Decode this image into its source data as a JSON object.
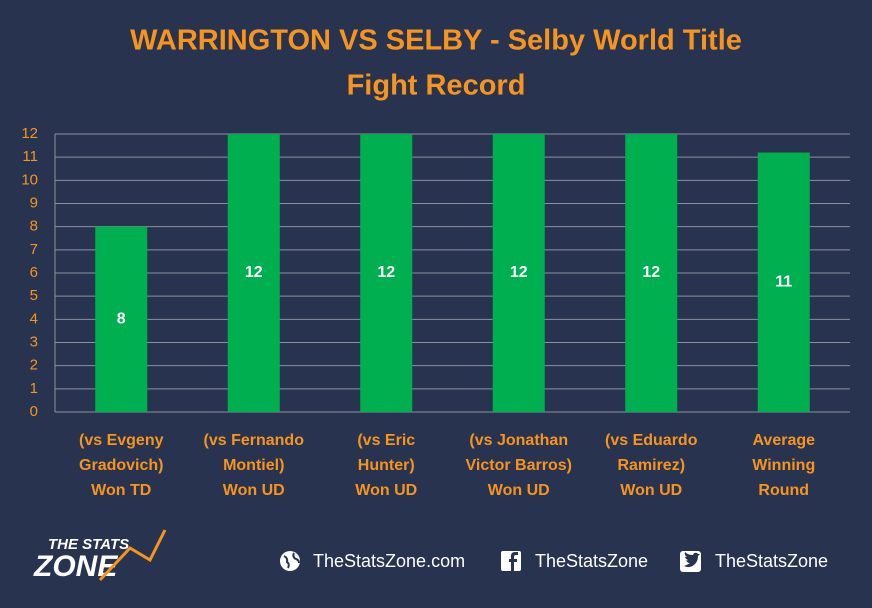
{
  "chart_data": {
    "type": "bar",
    "title": [
      "WARRINGTON VS SELBY - Selby World Title",
      "Fight Record"
    ],
    "categories": [
      [
        "(vs Evgeny",
        "Gradovich)",
        "Won TD"
      ],
      [
        "(vs Fernando",
        "Montiel)",
        "Won UD"
      ],
      [
        "(vs Eric",
        "Hunter)",
        "Won UD"
      ],
      [
        "(vs Jonathan",
        "Victor Barros)",
        "Won UD"
      ],
      [
        "(vs Eduardo",
        "Ramirez)",
        "Won UD"
      ],
      [
        "Average",
        "Winning",
        "Round"
      ]
    ],
    "values": [
      8,
      12,
      12,
      12,
      12,
      11.2
    ],
    "value_labels": [
      "8",
      "12",
      "12",
      "12",
      "12",
      "11"
    ],
    "color": "#00b050",
    "ylim": [
      0,
      12
    ],
    "yticks": [
      0,
      1,
      2,
      3,
      4,
      5,
      6,
      7,
      8,
      9,
      10,
      11,
      12
    ],
    "grid": true
  },
  "footer": {
    "logo": [
      "THE STATS",
      "ZONE"
    ],
    "website": "TheStatsZone.com",
    "facebook": "TheStatsZone",
    "twitter": "TheStatsZone"
  }
}
